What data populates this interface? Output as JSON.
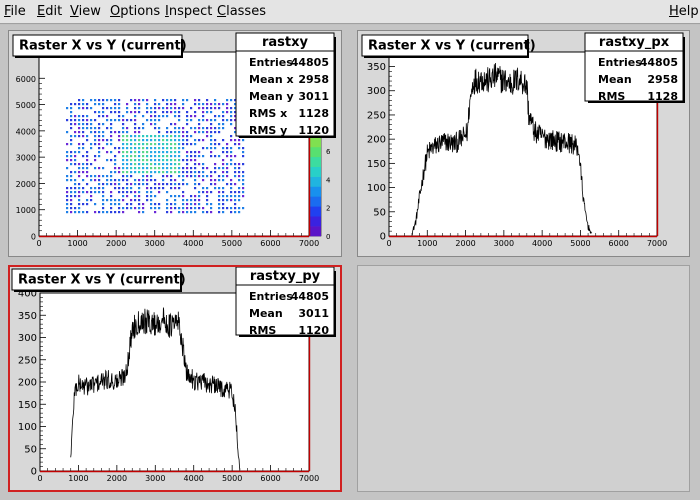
{
  "menubar": {
    "items": [
      {
        "pre": "",
        "ul": "F",
        "post": "ile"
      },
      {
        "pre": "",
        "ul": "E",
        "post": "dit"
      },
      {
        "pre": "",
        "ul": "V",
        "post": "iew"
      },
      {
        "pre": "",
        "ul": "O",
        "post": "ptions"
      },
      {
        "pre": "",
        "ul": "I",
        "post": "nspect"
      },
      {
        "pre": "",
        "ul": "C",
        "post": "lasses"
      }
    ],
    "help": {
      "pre": "",
      "ul": "H",
      "post": "elp"
    }
  },
  "pads": {
    "p1": {
      "title": "Raster X vs Y (current)",
      "stats": {
        "name": "rastxy",
        "rows": [
          {
            "label": "Entries",
            "value": "44805"
          },
          {
            "label": "Mean x",
            "value": "2958"
          },
          {
            "label": "Mean y",
            "value": "3011"
          },
          {
            "label": "RMS x",
            "value": "1128"
          },
          {
            "label": "RMS y",
            "value": "1120"
          }
        ]
      },
      "x_ticks": [
        "0",
        "1000",
        "2000",
        "3000",
        "4000",
        "5000",
        "6000",
        "7000"
      ],
      "y_ticks": [
        "0",
        "1000",
        "2000",
        "3000",
        "4000",
        "5000",
        "6000"
      ],
      "palette_ticks": [
        "0",
        "2",
        "4",
        "6"
      ]
    },
    "p2": {
      "title": "Raster X vs Y (current)",
      "stats": {
        "name": "rastxy_px",
        "rows": [
          {
            "label": "Entries",
            "value": "44805"
          },
          {
            "label": "Mean",
            "value": "2958"
          },
          {
            "label": "RMS",
            "value": "1128"
          }
        ]
      },
      "x_ticks": [
        "0",
        "1000",
        "2000",
        "3000",
        "4000",
        "5000",
        "6000",
        "7000"
      ],
      "y_ticks": [
        "0",
        "50",
        "100",
        "150",
        "200",
        "250",
        "300",
        "350"
      ]
    },
    "p3": {
      "title": "Raster X vs Y (current)",
      "stats": {
        "name": "rastxy_py",
        "rows": [
          {
            "label": "Entries",
            "value": "44805"
          },
          {
            "label": "Mean",
            "value": "3011"
          },
          {
            "label": "RMS",
            "value": "1120"
          }
        ]
      },
      "x_ticks": [
        "0",
        "1000",
        "2000",
        "3000",
        "4000",
        "5000",
        "6000",
        "7000"
      ],
      "y_ticks": [
        "0",
        "50",
        "100",
        "150",
        "200",
        "250",
        "300",
        "350",
        "400"
      ]
    }
  },
  "chart_data": [
    {
      "type": "heatmap",
      "name": "rastxy",
      "xlim": [
        0,
        7000
      ],
      "ylim": [
        0,
        7000
      ],
      "filled_region": {
        "x": [
          700,
          5300
        ],
        "y": [
          800,
          5100
        ]
      },
      "dense_region": {
        "x": [
          2100,
          3700
        ],
        "y": [
          2300,
          3700
        ]
      },
      "z_range": [
        0,
        7
      ],
      "z_ticks": [
        0,
        2,
        4,
        6
      ]
    },
    {
      "type": "line",
      "name": "rastxy_px",
      "xlim": [
        0,
        7000
      ],
      "ylim": [
        0,
        380
      ],
      "x": [
        600,
        700,
        800,
        900,
        1000,
        1100,
        1300,
        1500,
        1700,
        1900,
        2050,
        2100,
        2200,
        2400,
        2600,
        2800,
        3000,
        3200,
        3400,
        3600,
        3650,
        3700,
        3800,
        4000,
        4200,
        4400,
        4600,
        4800,
        4950,
        5000,
        5100,
        5200,
        5300
      ],
      "y": [
        5,
        30,
        80,
        130,
        170,
        180,
        190,
        195,
        190,
        200,
        215,
        270,
        320,
        325,
        320,
        330,
        320,
        315,
        325,
        310,
        250,
        240,
        215,
        205,
        200,
        195,
        195,
        190,
        180,
        140,
        60,
        20,
        3
      ]
    },
    {
      "type": "line",
      "name": "rastxy_py",
      "xlim": [
        0,
        7000
      ],
      "ylim": [
        0,
        400
      ],
      "x": [
        800,
        850,
        900,
        1000,
        1200,
        1400,
        1600,
        1800,
        2000,
        2200,
        2300,
        2400,
        2600,
        2800,
        3000,
        3200,
        3400,
        3600,
        3700,
        3800,
        4000,
        4200,
        4400,
        4600,
        4800,
        5000,
        5100,
        5150,
        5200
      ],
      "y": [
        30,
        110,
        180,
        195,
        190,
        195,
        200,
        205,
        200,
        215,
        250,
        320,
        340,
        335,
        330,
        340,
        325,
        335,
        290,
        220,
        205,
        200,
        195,
        190,
        185,
        180,
        120,
        40,
        5
      ]
    }
  ]
}
